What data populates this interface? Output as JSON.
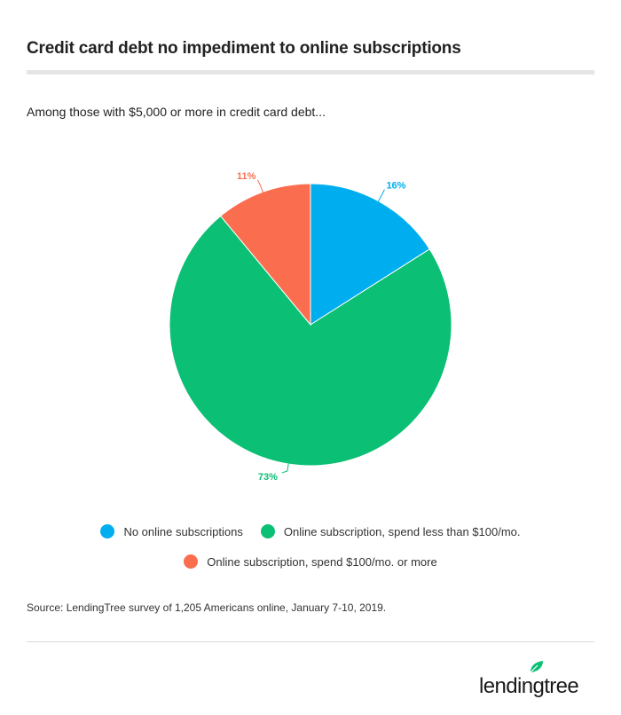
{
  "header": {
    "title": "Credit card debt no impediment to online subscriptions",
    "subtitle": "Among those with $5,000 or more in credit card debt..."
  },
  "chart_data": {
    "type": "pie",
    "slices": [
      {
        "label": "No online subscriptions",
        "value": 16,
        "display": "16%",
        "color": "#00aeef"
      },
      {
        "label": "Online subscription, spend less than $100/mo.",
        "value": 73,
        "display": "73%",
        "color": "#0bbf74"
      },
      {
        "label": "Online subscription, spend $100/mo. or more",
        "value": 11,
        "display": "11%",
        "color": "#fa6e4f"
      }
    ],
    "start": "12 o'clock",
    "direction": "clockwise"
  },
  "footer": {
    "source": "Source: LendingTree survey of 1,205 Americans online, January 7-10, 2019."
  },
  "logo": {
    "text": "lendingtree",
    "leaf_color": "#0bbf74"
  }
}
